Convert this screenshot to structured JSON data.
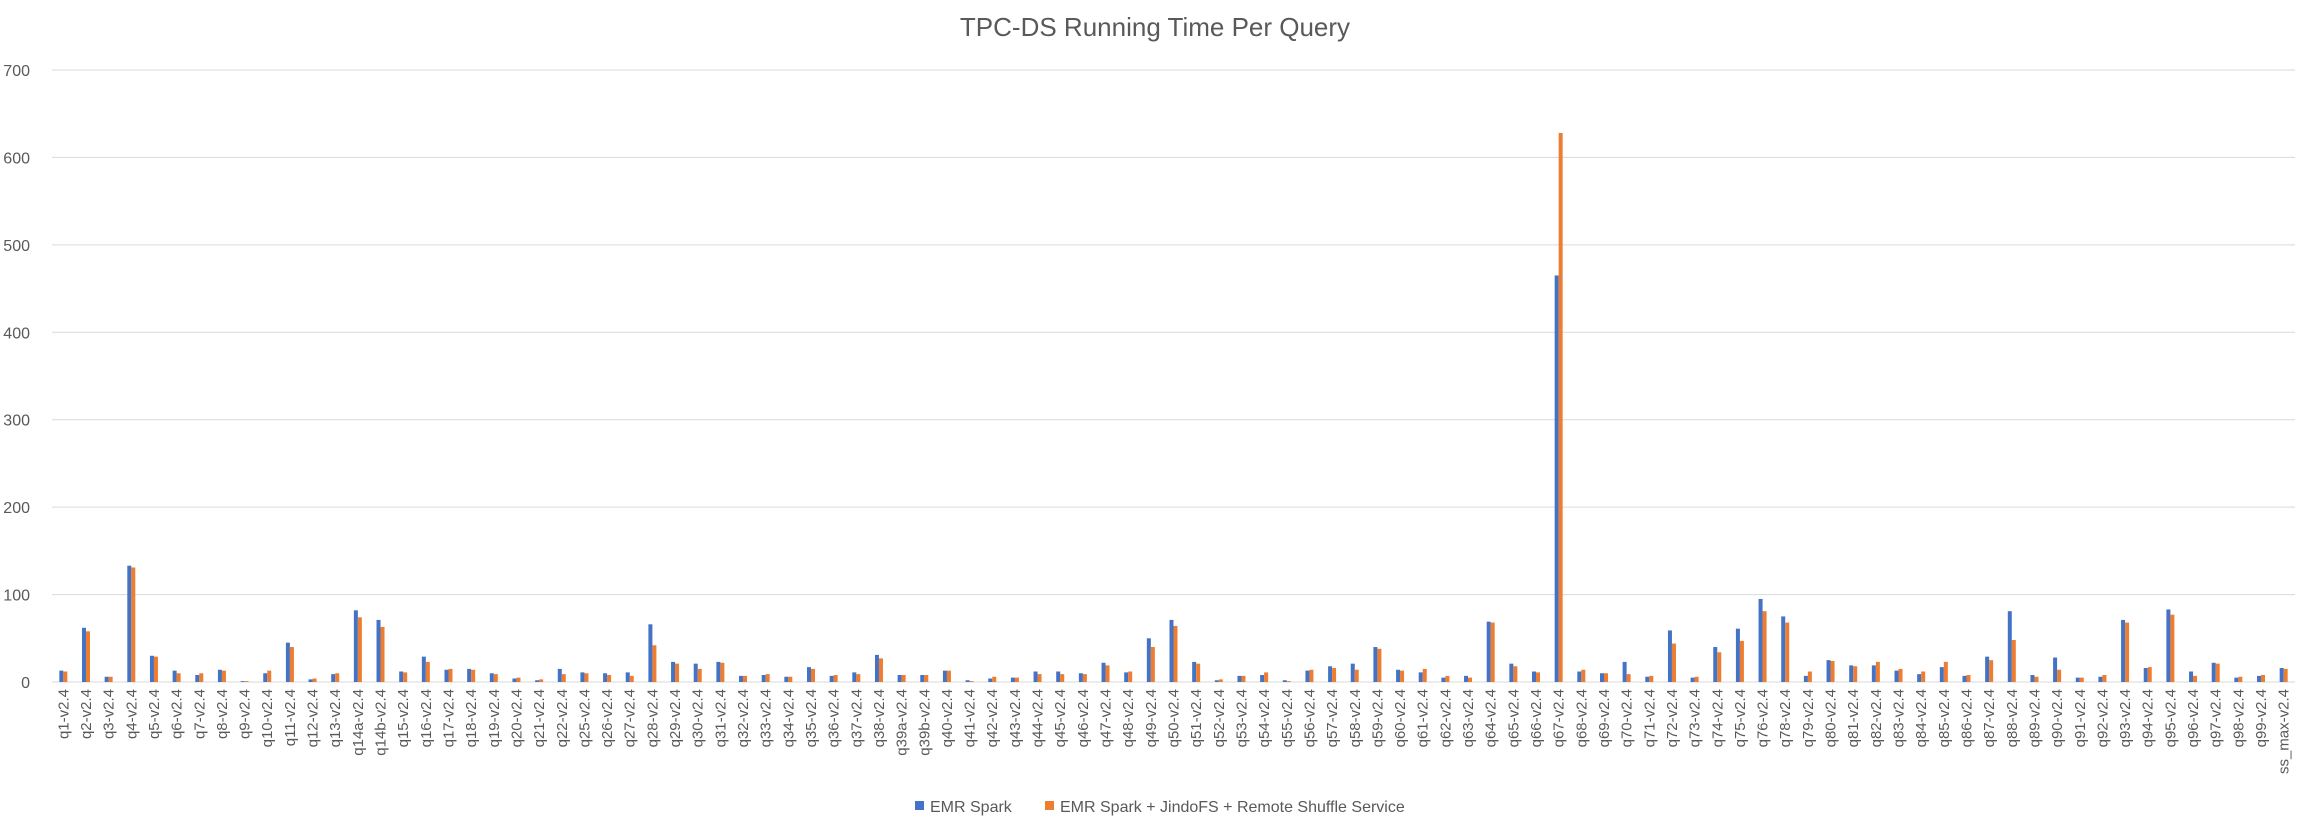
{
  "chart_data": {
    "type": "bar",
    "title": "TPC-DS Running Time Per Query",
    "xlabel": "",
    "ylabel": "",
    "ylim": [
      0,
      700
    ],
    "yticks": [
      0,
      100,
      200,
      300,
      400,
      500,
      600,
      700
    ],
    "grid": true,
    "legend_position": "bottom",
    "colors": [
      "#4472C4",
      "#ED7D31"
    ],
    "categories": [
      "q1-v2.4",
      "q2-v2.4",
      "q3-v2.4",
      "q4-v2.4",
      "q5-v2.4",
      "q6-v2.4",
      "q7-v2.4",
      "q8-v2.4",
      "q9-v2.4",
      "q10-v2.4",
      "q11-v2.4",
      "q12-v2.4",
      "q13-v2.4",
      "q14a-v2.4",
      "q14b-v2.4",
      "q15-v2.4",
      "q16-v2.4",
      "q17-v2.4",
      "q18-v2.4",
      "q19-v2.4",
      "q20-v2.4",
      "q21-v2.4",
      "q22-v2.4",
      "q25-v2.4",
      "q26-v2.4",
      "q27-v2.4",
      "q28-v2.4",
      "q29-v2.4",
      "q30-v2.4",
      "q31-v2.4",
      "q32-v2.4",
      "q33-v2.4",
      "q34-v2.4",
      "q35-v2.4",
      "q36-v2.4",
      "q37-v2.4",
      "q38-v2.4",
      "q39a-v2.4",
      "q39b-v2.4",
      "q40-v2.4",
      "q41-v2.4",
      "q42-v2.4",
      "q43-v2.4",
      "q44-v2.4",
      "q45-v2.4",
      "q46-v2.4",
      "q47-v2.4",
      "q48-v2.4",
      "q49-v2.4",
      "q50-v2.4",
      "q51-v2.4",
      "q52-v2.4",
      "q53-v2.4",
      "q54-v2.4",
      "q55-v2.4",
      "q56-v2.4",
      "q57-v2.4",
      "q58-v2.4",
      "q59-v2.4",
      "q60-v2.4",
      "q61-v2.4",
      "q62-v2.4",
      "q63-v2.4",
      "q64-v2.4",
      "q65-v2.4",
      "q66-v2.4",
      "q67-v2.4",
      "q68-v2.4",
      "q69-v2.4",
      "q70-v2.4",
      "q71-v2.4",
      "q72-v2.4",
      "q73-v2.4",
      "q74-v2.4",
      "q75-v2.4",
      "q76-v2.4",
      "q78-v2.4",
      "q79-v2.4",
      "q80-v2.4",
      "q81-v2.4",
      "q82-v2.4",
      "q83-v2.4",
      "q84-v2.4",
      "q85-v2.4",
      "q86-v2.4",
      "q87-v2.4",
      "q88-v2.4",
      "q89-v2.4",
      "q90-v2.4",
      "q91-v2.4",
      "q92-v2.4",
      "q93-v2.4",
      "q94-v2.4",
      "q95-v2.4",
      "q96-v2.4",
      "q97-v2.4",
      "q98-v2.4",
      "q99-v2.4",
      "ss_max-v2.4"
    ],
    "series": [
      {
        "name": "EMR Spark",
        "values": [
          13,
          62,
          6,
          133,
          30,
          13,
          8,
          14,
          1,
          10,
          45,
          3,
          9,
          82,
          71,
          12,
          29,
          14,
          15,
          10,
          4,
          2,
          15,
          11,
          10,
          11,
          66,
          23,
          21,
          23,
          7,
          8,
          6,
          17,
          7,
          11,
          31,
          8,
          8,
          13,
          2,
          4,
          5,
          12,
          12,
          10,
          22,
          11,
          50,
          71,
          23,
          2,
          7,
          8,
          2,
          13,
          18,
          21,
          40,
          14,
          11,
          5,
          7,
          69,
          21,
          12,
          465,
          12,
          10,
          23,
          6,
          59,
          5,
          40,
          61,
          95,
          75,
          7,
          25,
          19,
          19,
          13,
          9,
          17,
          7,
          29,
          81,
          8,
          28,
          5,
          6,
          71,
          16,
          83,
          12,
          22,
          5,
          7,
          16
        ]
      },
      {
        "name": "EMR Spark + JindoFS + Remote Shuffle Service",
        "values": [
          12,
          58,
          6,
          131,
          29,
          10,
          10,
          13,
          1,
          13,
          40,
          4,
          10,
          74,
          63,
          11,
          23,
          15,
          14,
          9,
          5,
          3,
          9,
          10,
          8,
          7,
          42,
          21,
          15,
          22,
          7,
          9,
          6,
          15,
          8,
          9,
          27,
          8,
          8,
          13,
          1,
          6,
          5,
          9,
          9,
          9,
          19,
          12,
          40,
          64,
          21,
          3,
          7,
          11,
          1,
          14,
          16,
          14,
          38,
          13,
          15,
          7,
          5,
          68,
          18,
          11,
          628,
          14,
          10,
          9,
          7,
          44,
          6,
          34,
          47,
          81,
          68,
          12,
          24,
          18,
          23,
          15,
          12,
          23,
          8,
          25,
          48,
          6,
          14,
          5,
          8,
          68,
          17,
          77,
          7,
          21,
          6,
          8,
          15
        ]
      }
    ]
  }
}
